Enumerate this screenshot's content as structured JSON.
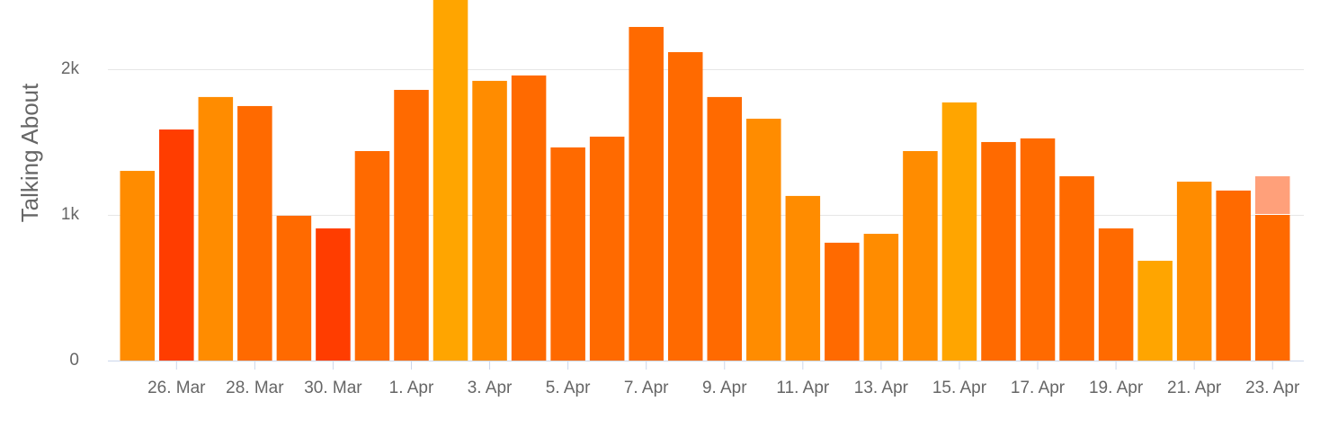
{
  "chart_data": {
    "type": "bar",
    "y_label": "Talking About",
    "categories": [
      null,
      "26. Mar",
      null,
      "28. Mar",
      null,
      "30. Mar",
      null,
      "1. Apr",
      null,
      "3. Apr",
      null,
      "5. Apr",
      null,
      "7. Apr",
      null,
      "9. Apr",
      null,
      "11. Apr",
      null,
      "13. Apr",
      null,
      "15. Apr",
      null,
      "17. Apr",
      null,
      "19. Apr",
      null,
      "21. Apr",
      null,
      "23. Apr"
    ],
    "series": [
      {
        "values": [
          1302,
          1586,
          1809,
          1747,
          994,
          907,
          1438,
          1858,
          2500,
          1920,
          1957,
          1463,
          1537,
          2290,
          2117,
          1809,
          1660,
          1130,
          809,
          870,
          1438,
          1772,
          1500,
          1525,
          1265,
          907,
          685,
          1228,
          1167,
          1000
        ],
        "colors": [
          "#ff8c00",
          "#ff3d00",
          "#ff8c00",
          "#ff6a00",
          "#ff6a00",
          "#ff3d00",
          "#ff6a00",
          "#ff6a00",
          "#ffa500",
          "#ff8c00",
          "#ff6a00",
          "#ff6a00",
          "#ff6a00",
          "#ff6a00",
          "#ff6a00",
          "#ff6a00",
          "#ff8c00",
          "#ff8c00",
          "#ff6a00",
          "#ff8c00",
          "#ff8c00",
          "#ffa500",
          "#ff6a00",
          "#ff6a00",
          "#ff6a00",
          "#ff6a00",
          "#ffa500",
          "#ff8c00",
          "#ff6a00",
          "#ff6a00"
        ]
      },
      {
        "values": [
          null,
          null,
          null,
          null,
          null,
          null,
          null,
          null,
          null,
          null,
          null,
          null,
          null,
          null,
          null,
          null,
          null,
          null,
          null,
          null,
          null,
          null,
          null,
          null,
          null,
          null,
          null,
          null,
          null,
          265
        ],
        "color": "#ffa07a"
      }
    ],
    "ylim": [
      0,
      2475
    ],
    "yticks": [
      0,
      {
        "value": 1000,
        "label": "1k"
      },
      {
        "value": 2000,
        "label": "2k"
      }
    ],
    "grid": true
  }
}
